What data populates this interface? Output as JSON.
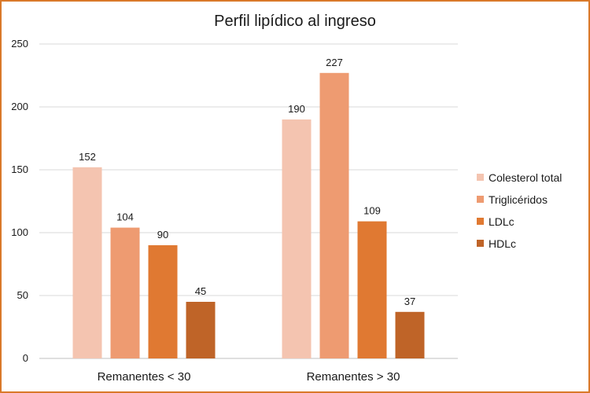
{
  "chart_data": {
    "type": "bar",
    "title": "Perfil lipídico al ingreso",
    "xlabel": "",
    "ylabel": "",
    "categories": [
      "Remanentes < 30",
      "Remanentes > 30"
    ],
    "ylim": [
      0,
      250
    ],
    "yticks": [
      "0",
      "50",
      "100",
      "150",
      "200",
      "250"
    ],
    "grid": true,
    "legend_position": "right",
    "series": [
      {
        "name": "Colesterol total",
        "color": "#f4c4b0",
        "values": [
          152,
          190
        ]
      },
      {
        "name": "Triglicéridos",
        "color": "#ee9b71",
        "values": [
          104,
          227
        ]
      },
      {
        "name": "LDLc",
        "color": "#e07932",
        "values": [
          90,
          109
        ]
      },
      {
        "name": "HDLc",
        "color": "#bf6428",
        "values": [
          45,
          37
        ]
      }
    ]
  }
}
